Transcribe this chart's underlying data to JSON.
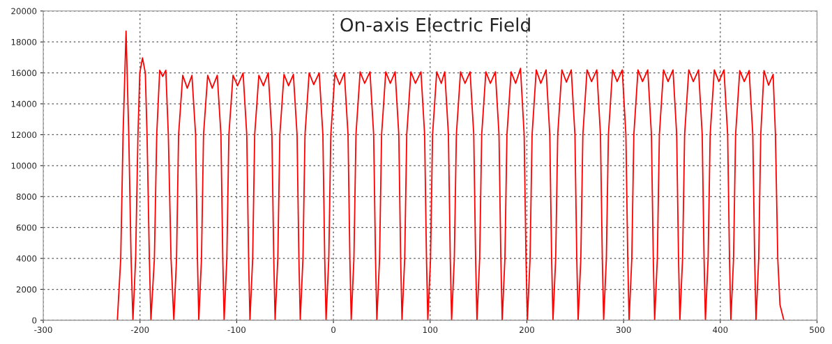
{
  "chart_data": {
    "type": "line",
    "title": "On-axis Electric Field",
    "x": [
      -223.4,
      -219.9,
      -217.5,
      -214.4,
      -211.6,
      -209.2,
      -207.3,
      -204.5,
      -202.1,
      -200.2,
      -197.4,
      -194.5,
      -192.7,
      -190.3,
      -188.7,
      -185.1,
      -182.7,
      -179.6,
      -176.5,
      -173.3,
      -170.7,
      -167.9,
      -165,
      -162.2,
      -160.1,
      -155.8,
      -151.1,
      -146.3,
      -142.5,
      -140.6,
      -139.2,
      -136.4,
      -134.3,
      -130,
      -125.3,
      -120.1,
      -116.3,
      -114.4,
      -113,
      -110.2,
      -108.1,
      -103.8,
      -99.1,
      -93.4,
      -89.6,
      -87.7,
      -86.3,
      -83.5,
      -81.4,
      -77.1,
      -72.4,
      -67.4,
      -63.6,
      -61.7,
      -60.3,
      -57.5,
      -55.4,
      -51.1,
      -46.4,
      -41.4,
      -37.6,
      -35.7,
      -34.3,
      -31.5,
      -29.4,
      -25.1,
      -20.4,
      -14.7,
      -10.9,
      -9,
      -7.6,
      -4.8,
      -2.7,
      1.6,
      6.3,
      11.3,
      15.1,
      17,
      18.4,
      21.2,
      23.3,
      27.6,
      32.3,
      37.8,
      41.6,
      43.5,
      44.9,
      47.7,
      49.8,
      54.1,
      58.8,
      63.8,
      67.6,
      69.5,
      70.9,
      73.7,
      75.8,
      80.1,
      84.8,
      90.5,
      94.3,
      96.2,
      97.6,
      100.4,
      102.5,
      106.8,
      111.5,
      115.1,
      118.9,
      120.8,
      122.2,
      125,
      127.1,
      131.4,
      136.1,
      141.3,
      145.1,
      147,
      148.4,
      151.2,
      153.3,
      157.6,
      162.3,
      167.4,
      171.2,
      173.1,
      174.5,
      177.3,
      179.4,
      183.7,
      188.4,
      193.4,
      197.2,
      199.1,
      200.5,
      203.3,
      205.4,
      209.7,
      214.4,
      219.9,
      223.7,
      225.6,
      227,
      229.8,
      231.9,
      236.2,
      240.9,
      245.9,
      249.7,
      251.6,
      253,
      255.8,
      257.9,
      262.2,
      266.9,
      272.3,
      276.1,
      278,
      279.4,
      282.2,
      284.3,
      288.6,
      293.3,
      298.6,
      302.4,
      304.3,
      305.7,
      308.5,
      310.6,
      314.9,
      319.6,
      325,
      328.8,
      330.7,
      332.1,
      334.9,
      337,
      341.3,
      346,
      351.1,
      354.9,
      356.8,
      358.2,
      361,
      363.1,
      367.4,
      372.1,
      377.5,
      381.3,
      383.2,
      384.6,
      387.4,
      389.5,
      393.8,
      398.5,
      403.8,
      407.6,
      409.5,
      410.9,
      413.7,
      415.8,
      420.1,
      424.8,
      429.8,
      433.6,
      435.5,
      436.9,
      439.7,
      441.8,
      445.2,
      449.9,
      454.6,
      457,
      459.4,
      461.7,
      465.7
    ],
    "series": [
      {
        "color": "#ff0000",
        "values": [
          0,
          4000,
          12000,
          18700,
          12000,
          4000,
          0,
          4000,
          12000,
          16000,
          16970,
          16000,
          12000,
          4000,
          0,
          4000,
          12000,
          16170,
          15770,
          16170,
          12000,
          4000,
          0,
          4000,
          12000,
          15840,
          15010,
          15840,
          12000,
          4000,
          0,
          4000,
          12000,
          15840,
          15010,
          15840,
          12000,
          4000,
          0,
          4000,
          12000,
          15840,
          15170,
          15990,
          12000,
          4000,
          0,
          4000,
          12000,
          15840,
          15170,
          16000,
          12000,
          4000,
          0,
          4000,
          12000,
          15900,
          15170,
          15900,
          12000,
          4000,
          0,
          4000,
          12000,
          16000,
          15240,
          16000,
          12000,
          4000,
          0,
          4000,
          12000,
          16000,
          15240,
          16000,
          12000,
          4000,
          0,
          4000,
          12000,
          16070,
          15320,
          16070,
          12000,
          4000,
          0,
          4000,
          12000,
          16070,
          15320,
          16070,
          12000,
          4000,
          0,
          4000,
          12000,
          16070,
          15320,
          16070,
          12000,
          4000,
          0,
          4000,
          12000,
          16070,
          15320,
          16070,
          12000,
          4000,
          0,
          4000,
          12000,
          16070,
          15320,
          16070,
          12000,
          4000,
          0,
          4000,
          12000,
          16070,
          15320,
          16070,
          12000,
          4000,
          0,
          4000,
          12000,
          16070,
          15320,
          16290,
          12000,
          4000,
          0,
          4000,
          12000,
          16190,
          15320,
          16190,
          12000,
          4000,
          0,
          4000,
          12000,
          16190,
          15400,
          16190,
          12000,
          4000,
          0,
          4000,
          12000,
          16190,
          15440,
          16190,
          12000,
          4000,
          0,
          4000,
          12000,
          16190,
          15440,
          16190,
          12000,
          4000,
          0,
          4000,
          12000,
          16190,
          15440,
          16190,
          12000,
          4000,
          0,
          4000,
          12000,
          16190,
          15440,
          16190,
          12000,
          4000,
          0,
          4000,
          12000,
          16190,
          15440,
          16190,
          12000,
          4000,
          0,
          4000,
          12000,
          16190,
          15440,
          16190,
          12000,
          4000,
          0,
          4000,
          12000,
          16150,
          15440,
          16150,
          12000,
          4000,
          0,
          4000,
          12000,
          16150,
          15200,
          15900,
          12000,
          4000,
          1000,
          0
        ]
      }
    ],
    "xlim": [
      -300,
      500
    ],
    "xticks": [
      -300,
      -200,
      -100,
      0,
      100,
      200,
      300,
      400,
      500
    ],
    "ylim": [
      0,
      20000
    ],
    "yticks": [
      0,
      2000,
      4000,
      6000,
      8000,
      10000,
      12000,
      14000,
      16000,
      18000,
      20000
    ],
    "grid": true
  }
}
